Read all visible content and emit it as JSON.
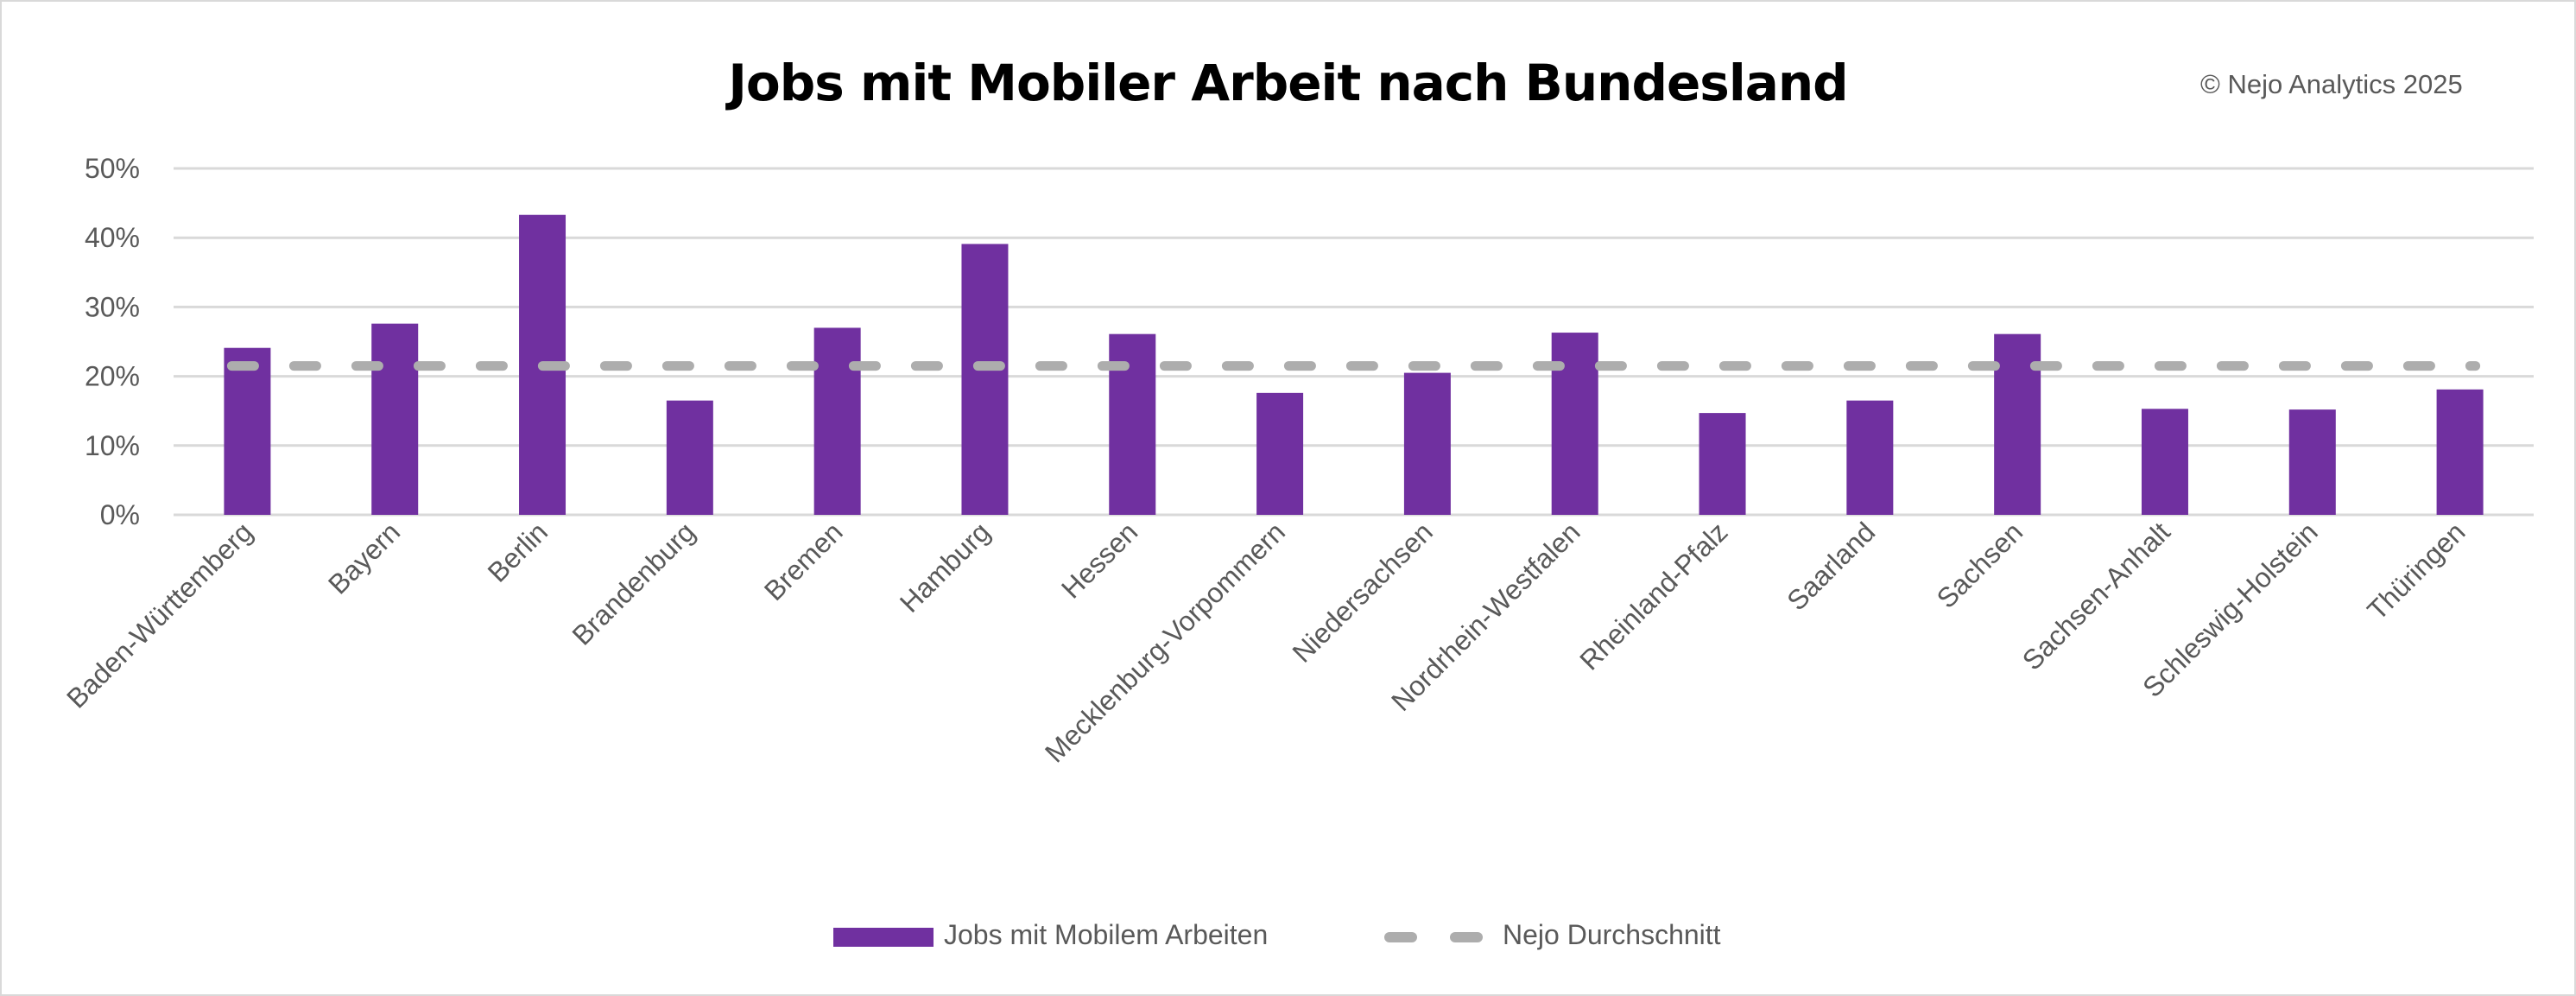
{
  "chart_data": {
    "type": "bar",
    "title": "Jobs mit Mobiler Arbeit nach Bundesland",
    "annotation": "© Nejo Analytics 2025",
    "categories": [
      "Baden-Württemberg",
      "Bayern",
      "Berlin",
      "Brandenburg",
      "Bremen",
      "Hamburg",
      "Hessen",
      "Mecklenburg-Vorpommern",
      "Niedersachsen",
      "Nordrhein-Westfalen",
      "Rheinland-Pfalz",
      "Saarland",
      "Sachsen",
      "Sachsen-Anhalt",
      "Schleswig-Holstein",
      "Thüringen"
    ],
    "series": [
      {
        "name": "Jobs mit Mobilem Arbeiten",
        "type": "bar",
        "color": "#7030a0",
        "values": [
          24.1,
          27.6,
          43.3,
          16.5,
          27.0,
          39.1,
          26.1,
          17.6,
          20.5,
          26.3,
          14.7,
          16.5,
          26.1,
          15.3,
          15.2,
          18.1
        ]
      },
      {
        "name": "Nejo Durchschnitt",
        "type": "line",
        "style": "dashed",
        "color": "#adadad",
        "values": [
          21.5,
          21.5,
          21.5,
          21.5,
          21.5,
          21.5,
          21.5,
          21.5,
          21.5,
          21.5,
          21.5,
          21.5,
          21.5,
          21.5,
          21.5,
          21.5
        ]
      }
    ],
    "yticks": [
      "0%",
      "10%",
      "20%",
      "30%",
      "40%",
      "50%"
    ],
    "ylim": [
      0,
      50
    ],
    "xlabel": "",
    "ylabel": "",
    "grid": true,
    "gridline_color": "#d9d9d9",
    "legend_position": "bottom"
  }
}
